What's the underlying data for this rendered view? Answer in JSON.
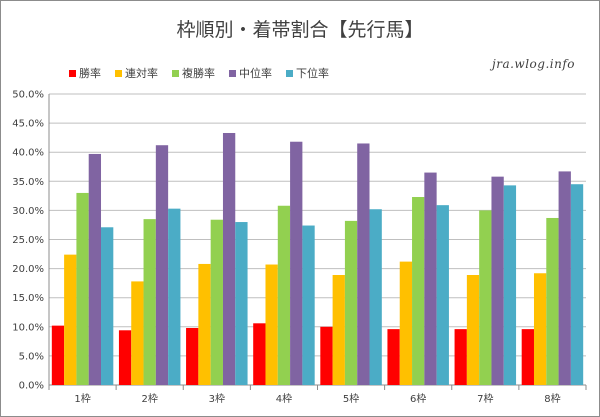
{
  "chart_data": {
    "type": "bar",
    "title": "枠順別・着帯割合【先行馬】",
    "categories": [
      "1枠",
      "2枠",
      "3枠",
      "4枠",
      "5枠",
      "6枠",
      "7枠",
      "8枠"
    ],
    "series": [
      {
        "name": "勝率",
        "color": "#ff0000",
        "values": [
          10.2,
          9.4,
          9.8,
          10.6,
          10.0,
          9.6,
          9.6,
          9.6
        ]
      },
      {
        "name": "連対率",
        "color": "#ffc000",
        "values": [
          22.4,
          17.8,
          20.8,
          20.7,
          18.9,
          21.2,
          18.9,
          19.2
        ]
      },
      {
        "name": "複勝率",
        "color": "#92d050",
        "values": [
          33.0,
          28.5,
          28.4,
          30.8,
          28.2,
          32.3,
          30.0,
          28.7
        ]
      },
      {
        "name": "中位率",
        "color": "#8064a2",
        "values": [
          39.7,
          41.2,
          43.3,
          41.8,
          41.5,
          36.5,
          35.8,
          36.7
        ]
      },
      {
        "name": "下位率",
        "color": "#4bacc6",
        "values": [
          27.1,
          30.3,
          28.0,
          27.4,
          30.2,
          30.9,
          34.3,
          34.5
        ]
      }
    ],
    "ylim": [
      0,
      50
    ],
    "yticks": [
      "0.0%",
      "5.0%",
      "10.0%",
      "15.0%",
      "20.0%",
      "25.0%",
      "30.0%",
      "35.0%",
      "40.0%",
      "45.0%",
      "50.0%"
    ],
    "grid": true,
    "legend_position": "top-left"
  },
  "watermark": "jra.wlog.info"
}
